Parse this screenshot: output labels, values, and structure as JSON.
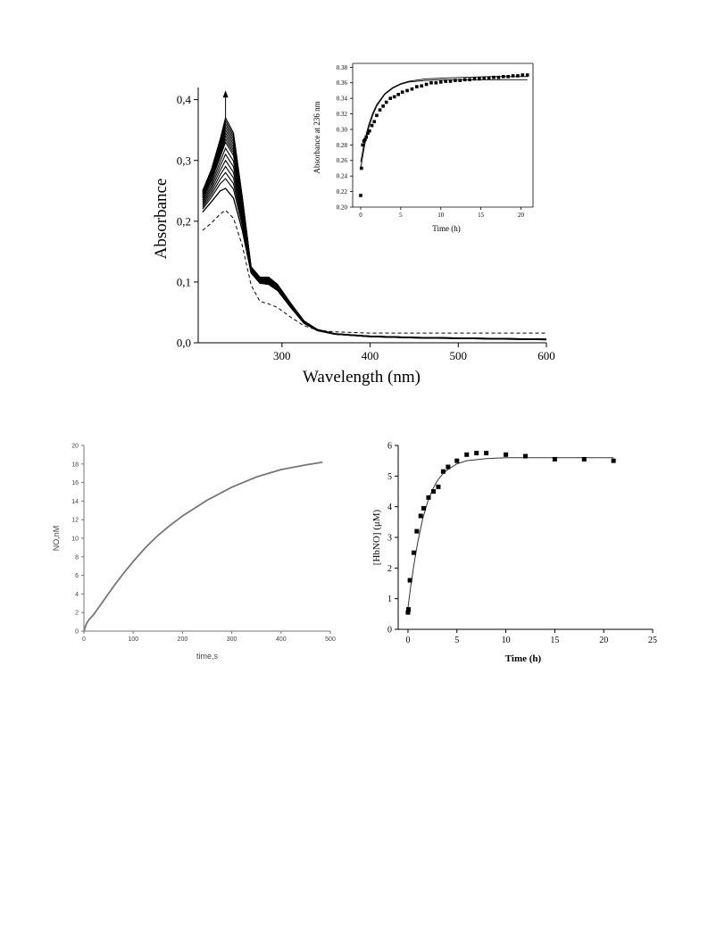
{
  "chart_data": [
    {
      "id": "uv_spectra",
      "type": "line",
      "xlabel": "Wavelength (nm)",
      "ylabel": "Absorbance",
      "xlim": [
        205,
        600
      ],
      "ylim": [
        0,
        0.42
      ],
      "xticks": [
        300,
        400,
        500,
        600
      ],
      "xtick_labels": [
        "300",
        "400",
        "500",
        "600"
      ],
      "yticks": [
        0,
        0.1,
        0.2,
        0.3,
        0.4
      ],
      "ytick_labels": [
        "0,0",
        "0,1",
        "0,2",
        "0,3",
        "0,4"
      ],
      "grid": false,
      "annotation": "upward arrow at the 236 nm peak",
      "peak_values": [
        0.22,
        0.25,
        0.27,
        0.28,
        0.29,
        0.3,
        0.31,
        0.32,
        0.33,
        0.335,
        0.34,
        0.345,
        0.35,
        0.355,
        0.36,
        0.365,
        0.37
      ],
      "series": [
        {
          "style": "dashed",
          "x": [
            210,
            220,
            230,
            236,
            245,
            255,
            265,
            275,
            285,
            295,
            310,
            325,
            340,
            360,
            400,
            450,
            500,
            550,
            600
          ],
          "y": [
            0.185,
            0.197,
            0.212,
            0.218,
            0.205,
            0.16,
            0.095,
            0.068,
            0.064,
            0.058,
            0.042,
            0.028,
            0.021,
            0.018,
            0.016,
            0.016,
            0.016,
            0.016,
            0.016
          ]
        },
        {
          "style": "solid",
          "x": [
            210,
            220,
            230,
            236,
            245,
            255,
            265,
            275,
            285,
            295,
            310,
            325,
            340,
            360,
            400,
            450,
            500,
            550,
            600
          ],
          "y": [
            0.215,
            0.232,
            0.25,
            0.254,
            0.238,
            0.185,
            0.115,
            0.098,
            0.096,
            0.086,
            0.058,
            0.032,
            0.02,
            0.014,
            0.01,
            0.008,
            0.007,
            0.006,
            0.005
          ]
        },
        {
          "style": "solid",
          "x": [
            210,
            220,
            230,
            236,
            245,
            255,
            265,
            275,
            285,
            295,
            310,
            325,
            340,
            360,
            400,
            450,
            500,
            550,
            600
          ],
          "y": [
            0.25,
            0.285,
            0.335,
            0.37,
            0.345,
            0.24,
            0.125,
            0.108,
            0.108,
            0.096,
            0.065,
            0.036,
            0.022,
            0.015,
            0.011,
            0.009,
            0.008,
            0.007,
            0.006
          ]
        }
      ]
    },
    {
      "id": "inset",
      "type": "scatter",
      "xlabel": "Time (h)",
      "ylabel": "Absorbance at 236 nm",
      "xlim": [
        -1,
        21.5
      ],
      "ylim": [
        0.2,
        0.385
      ],
      "xticks": [
        0,
        5,
        10,
        15,
        20
      ],
      "xtick_labels": [
        "0",
        "5",
        "10",
        "15",
        "20"
      ],
      "yticks": [
        0.2,
        0.22,
        0.24,
        0.26,
        0.28,
        0.3,
        0.32,
        0.34,
        0.36,
        0.38
      ],
      "ytick_labels": [
        "0.20",
        "0.22",
        "0.24",
        "0.26",
        "0.28",
        "0.30",
        "0.32",
        "0.34",
        "0.36",
        "0.38"
      ],
      "points_x": [
        0,
        0.1,
        0.25,
        0.4,
        0.55,
        0.7,
        0.9,
        1.1,
        1.4,
        1.7,
        2.0,
        2.4,
        2.8,
        3.2,
        3.7,
        4.2,
        4.7,
        5.2,
        5.8,
        6.4,
        7.0,
        7.6,
        8.2,
        8.8,
        9.4,
        10.0,
        10.6,
        11.2,
        11.8,
        12.4,
        13.0,
        13.6,
        14.2,
        14.8,
        15.4,
        16.0,
        16.6,
        17.2,
        17.8,
        18.4,
        19.0,
        19.6,
        20.2,
        20.8
      ],
      "points_y": [
        0.215,
        0.25,
        0.28,
        0.285,
        0.287,
        0.29,
        0.295,
        0.298,
        0.305,
        0.31,
        0.318,
        0.325,
        0.33,
        0.335,
        0.34,
        0.342,
        0.345,
        0.348,
        0.35,
        0.352,
        0.355,
        0.356,
        0.358,
        0.36,
        0.36,
        0.361,
        0.362,
        0.362,
        0.363,
        0.363,
        0.364,
        0.364,
        0.365,
        0.365,
        0.366,
        0.366,
        0.367,
        0.367,
        0.368,
        0.368,
        0.369,
        0.369,
        0.37,
        0.37
      ],
      "fit_curves": [
        {
          "x": [
            0,
            0.5,
            1,
            1.5,
            2,
            3,
            4,
            5,
            6,
            8,
            10,
            13,
            16,
            20.8
          ],
          "y": [
            0.25,
            0.28,
            0.302,
            0.318,
            0.33,
            0.345,
            0.353,
            0.358,
            0.361,
            0.363,
            0.364,
            0.364,
            0.364,
            0.364
          ]
        },
        {
          "x": [
            0,
            0.5,
            1,
            1.5,
            2,
            3,
            4,
            5,
            6,
            8,
            10,
            13,
            16,
            20.8
          ],
          "y": [
            0.258,
            0.286,
            0.306,
            0.321,
            0.332,
            0.346,
            0.354,
            0.359,
            0.362,
            0.365,
            0.366,
            0.367,
            0.368,
            0.368
          ]
        }
      ]
    },
    {
      "id": "no_trace",
      "type": "line",
      "xlabel": "time,s",
      "ylabel": "NO,nM",
      "xlim": [
        0,
        500
      ],
      "ylim": [
        0,
        20
      ],
      "xticks": [
        0,
        100,
        200,
        300,
        400,
        500
      ],
      "xtick_labels": [
        "0",
        "100",
        "200",
        "300",
        "400",
        "500"
      ],
      "yticks": [
        0,
        2,
        4,
        6,
        8,
        10,
        12,
        14,
        16,
        18,
        20
      ],
      "ytick_labels": [
        "0",
        "2",
        "4",
        "6",
        "8",
        "10",
        "12",
        "14",
        "16",
        "18",
        "20"
      ],
      "color": "#777777",
      "series": [
        {
          "x": [
            0,
            5,
            10,
            20,
            40,
            60,
            80,
            100,
            125,
            150,
            175,
            200,
            250,
            300,
            350,
            400,
            450,
            485
          ],
          "y": [
            0.0,
            0.8,
            1.2,
            1.8,
            3.3,
            4.8,
            6.2,
            7.5,
            9.0,
            10.3,
            11.4,
            12.4,
            14.1,
            15.5,
            16.6,
            17.4,
            17.9,
            18.2
          ]
        }
      ]
    },
    {
      "id": "hbno",
      "type": "scatter",
      "xlabel": "Time (h)",
      "ylabel": "[HbNO] (μM)",
      "xlim": [
        -1,
        25
      ],
      "ylim": [
        0,
        6
      ],
      "xticks": [
        0,
        5,
        10,
        15,
        20,
        25
      ],
      "xtick_labels": [
        "0",
        "5",
        "10",
        "15",
        "20",
        "25"
      ],
      "yticks": [
        0,
        1,
        2,
        3,
        4,
        5,
        6
      ],
      "ytick_labels": [
        "0",
        "1",
        "2",
        "3",
        "4",
        "5",
        "6"
      ],
      "points_x": [
        0,
        0.05,
        0.2,
        0.6,
        0.9,
        1.3,
        1.6,
        2.1,
        2.6,
        3.1,
        3.6,
        4.1,
        5.0,
        6.0,
        7.0,
        8.0,
        10.0,
        12.0,
        15.0,
        18.0,
        21.0
      ],
      "points_y": [
        0.55,
        0.65,
        1.6,
        2.5,
        3.2,
        3.7,
        3.95,
        4.3,
        4.5,
        4.65,
        5.15,
        5.3,
        5.5,
        5.7,
        5.75,
        5.75,
        5.7,
        5.65,
        5.55,
        5.55,
        5.5
      ],
      "fit_x": [
        0,
        0.3,
        0.6,
        1,
        1.5,
        2,
        2.5,
        3,
        3.5,
        4,
        5,
        6,
        8,
        10,
        14,
        18,
        21
      ],
      "fit_y": [
        0.7,
        1.45,
        2.1,
        2.85,
        3.6,
        4.15,
        4.55,
        4.85,
        5.05,
        5.2,
        5.4,
        5.5,
        5.57,
        5.6,
        5.6,
        5.6,
        5.6
      ]
    }
  ]
}
